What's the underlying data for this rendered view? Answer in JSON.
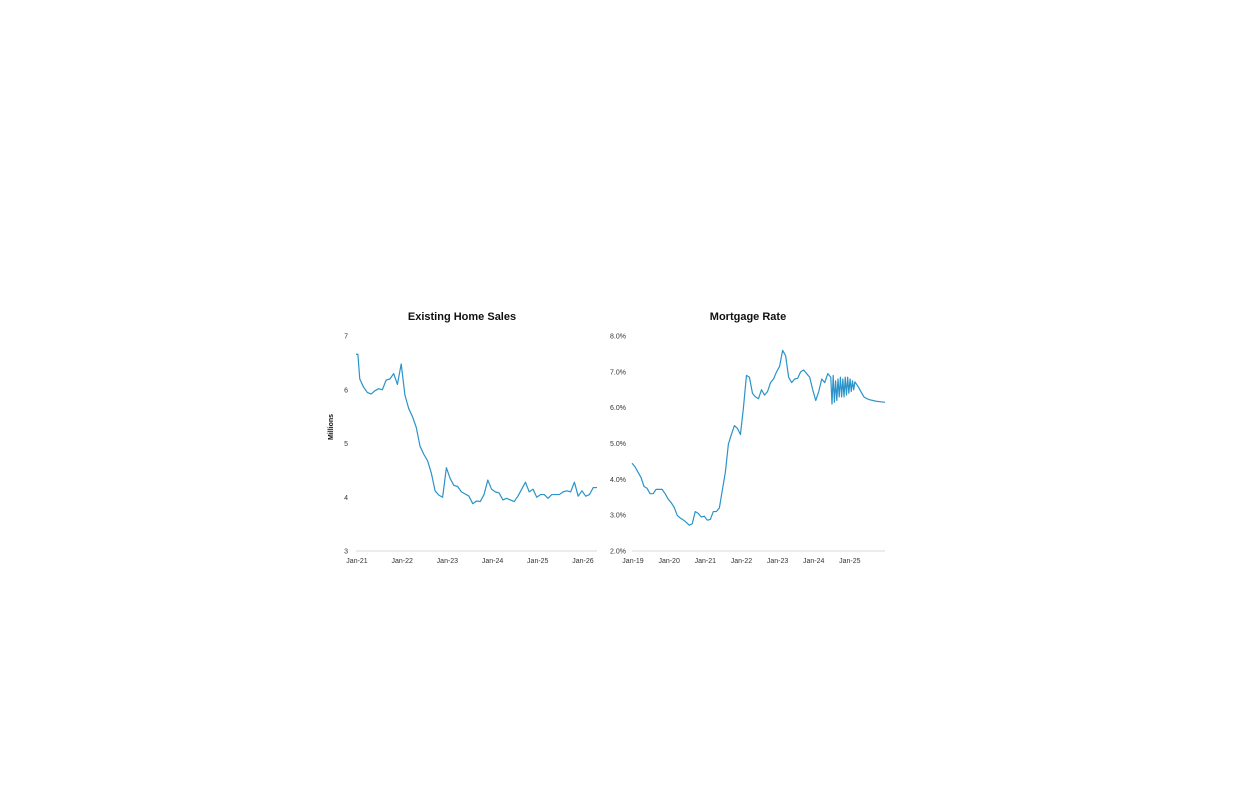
{
  "colors": {
    "line": "#2a93c9",
    "axis": "#d9d9d9",
    "text": "#333333"
  },
  "chart_data": [
    {
      "type": "line",
      "title": "Existing Home Sales",
      "xlabel": "",
      "ylabel": "Millions",
      "ylim": [
        3,
        7
      ],
      "y_ticks": [
        3,
        4,
        5,
        6,
        7
      ],
      "y_tick_labels": [
        "3",
        "4",
        "5",
        "6",
        "7"
      ],
      "x_tick_labels": [
        "Jan-21",
        "Jan-22",
        "Jan-23",
        "Jan-24",
        "Jan-25",
        "Jan-26"
      ],
      "x_range_months": [
        0,
        64
      ],
      "grid": false,
      "series": [
        {
          "x": [
            0,
            0.5,
            1,
            2,
            3,
            4,
            5,
            6,
            7,
            8,
            9,
            10,
            11,
            12,
            13,
            14,
            15,
            16,
            17,
            18,
            19,
            20,
            21,
            22,
            23,
            24,
            25,
            26,
            27,
            28,
            29,
            30,
            31,
            32,
            33,
            34,
            35,
            36,
            37,
            38,
            39,
            40,
            41,
            42,
            43,
            44,
            45,
            46,
            47,
            48,
            49,
            50,
            51,
            52,
            53,
            54,
            55,
            56,
            57,
            58,
            59,
            60,
            61,
            62,
            63,
            64
          ],
          "values": [
            6.66,
            6.66,
            6.2,
            6.05,
            5.95,
            5.92,
            5.98,
            6.02,
            6.0,
            6.18,
            6.2,
            6.3,
            6.1,
            6.48,
            5.9,
            5.65,
            5.5,
            5.3,
            4.95,
            4.8,
            4.68,
            4.45,
            4.12,
            4.04,
            4.0,
            4.55,
            4.35,
            4.22,
            4.2,
            4.1,
            4.06,
            4.02,
            3.88,
            3.93,
            3.92,
            4.05,
            4.32,
            4.15,
            4.1,
            4.08,
            3.95,
            3.98,
            3.95,
            3.92,
            4.02,
            4.15,
            4.28,
            4.1,
            4.15,
            4.0,
            4.05,
            4.05,
            3.98,
            4.05,
            4.05,
            4.05,
            4.1,
            4.12,
            4.1,
            4.28,
            4.02,
            4.12,
            4.02,
            4.05,
            4.18,
            4.18
          ]
        }
      ]
    },
    {
      "type": "line",
      "title": "Mortgage Rate",
      "xlabel": "",
      "ylabel": "",
      "ylim": [
        2.0,
        8.0
      ],
      "y_ticks": [
        2,
        3,
        4,
        5,
        6,
        7,
        8
      ],
      "y_tick_labels": [
        "2.0%",
        "3.0%",
        "4.0%",
        "5.0%",
        "6.0%",
        "7.0%",
        "8.0%"
      ],
      "x_tick_labels": [
        "Jan-19",
        "Jan-20",
        "Jan-21",
        "Jan-22",
        "Jan-23",
        "Jan-24",
        "Jan-25"
      ],
      "x_range_months": [
        0,
        84
      ],
      "grid": false,
      "series": [
        {
          "x": [
            0,
            1,
            2,
            3,
            4,
            5,
            6,
            7,
            8,
            9,
            10,
            11,
            12,
            13,
            14,
            15,
            16,
            17,
            18,
            19,
            20,
            21,
            22,
            23,
            24,
            25,
            26,
            27,
            28,
            29,
            30,
            31,
            32,
            33,
            34,
            35,
            36,
            37,
            38,
            39,
            40,
            41,
            42,
            43,
            44,
            45,
            46,
            47,
            48,
            49,
            50,
            51,
            52,
            53,
            54,
            55,
            56,
            57,
            58,
            59,
            60,
            61,
            62,
            63,
            64,
            65,
            66,
            66.4,
            66.8,
            67.2,
            67.6,
            68,
            68.4,
            68.8,
            69.2,
            69.6,
            70,
            70.4,
            70.8,
            71.2,
            71.6,
            72,
            72.4,
            72.8,
            73.2,
            73.6,
            74,
            75,
            76,
            77,
            78,
            79,
            80,
            81,
            82,
            83,
            84
          ],
          "values": [
            4.45,
            4.35,
            4.2,
            4.05,
            3.8,
            3.75,
            3.6,
            3.6,
            3.72,
            3.72,
            3.72,
            3.6,
            3.45,
            3.35,
            3.22,
            3.0,
            2.92,
            2.87,
            2.8,
            2.72,
            2.76,
            3.1,
            3.05,
            2.95,
            2.97,
            2.86,
            2.88,
            3.1,
            3.1,
            3.2,
            3.7,
            4.2,
            4.98,
            5.25,
            5.5,
            5.42,
            5.25,
            6.0,
            6.9,
            6.85,
            6.4,
            6.3,
            6.25,
            6.5,
            6.35,
            6.45,
            6.7,
            6.8,
            7.0,
            7.15,
            7.6,
            7.45,
            6.85,
            6.7,
            6.8,
            6.82,
            7.0,
            7.05,
            6.95,
            6.85,
            6.5,
            6.2,
            6.45,
            6.8,
            6.7,
            6.95,
            6.85,
            6.1,
            6.9,
            6.15,
            6.75,
            6.2,
            6.8,
            6.3,
            6.85,
            6.3,
            6.8,
            6.3,
            6.85,
            6.35,
            6.85,
            6.4,
            6.8,
            6.45,
            6.75,
            6.5,
            6.72,
            6.6,
            6.45,
            6.3,
            6.25,
            6.22,
            6.2,
            6.18,
            6.17,
            6.16,
            6.15
          ]
        }
      ]
    }
  ]
}
